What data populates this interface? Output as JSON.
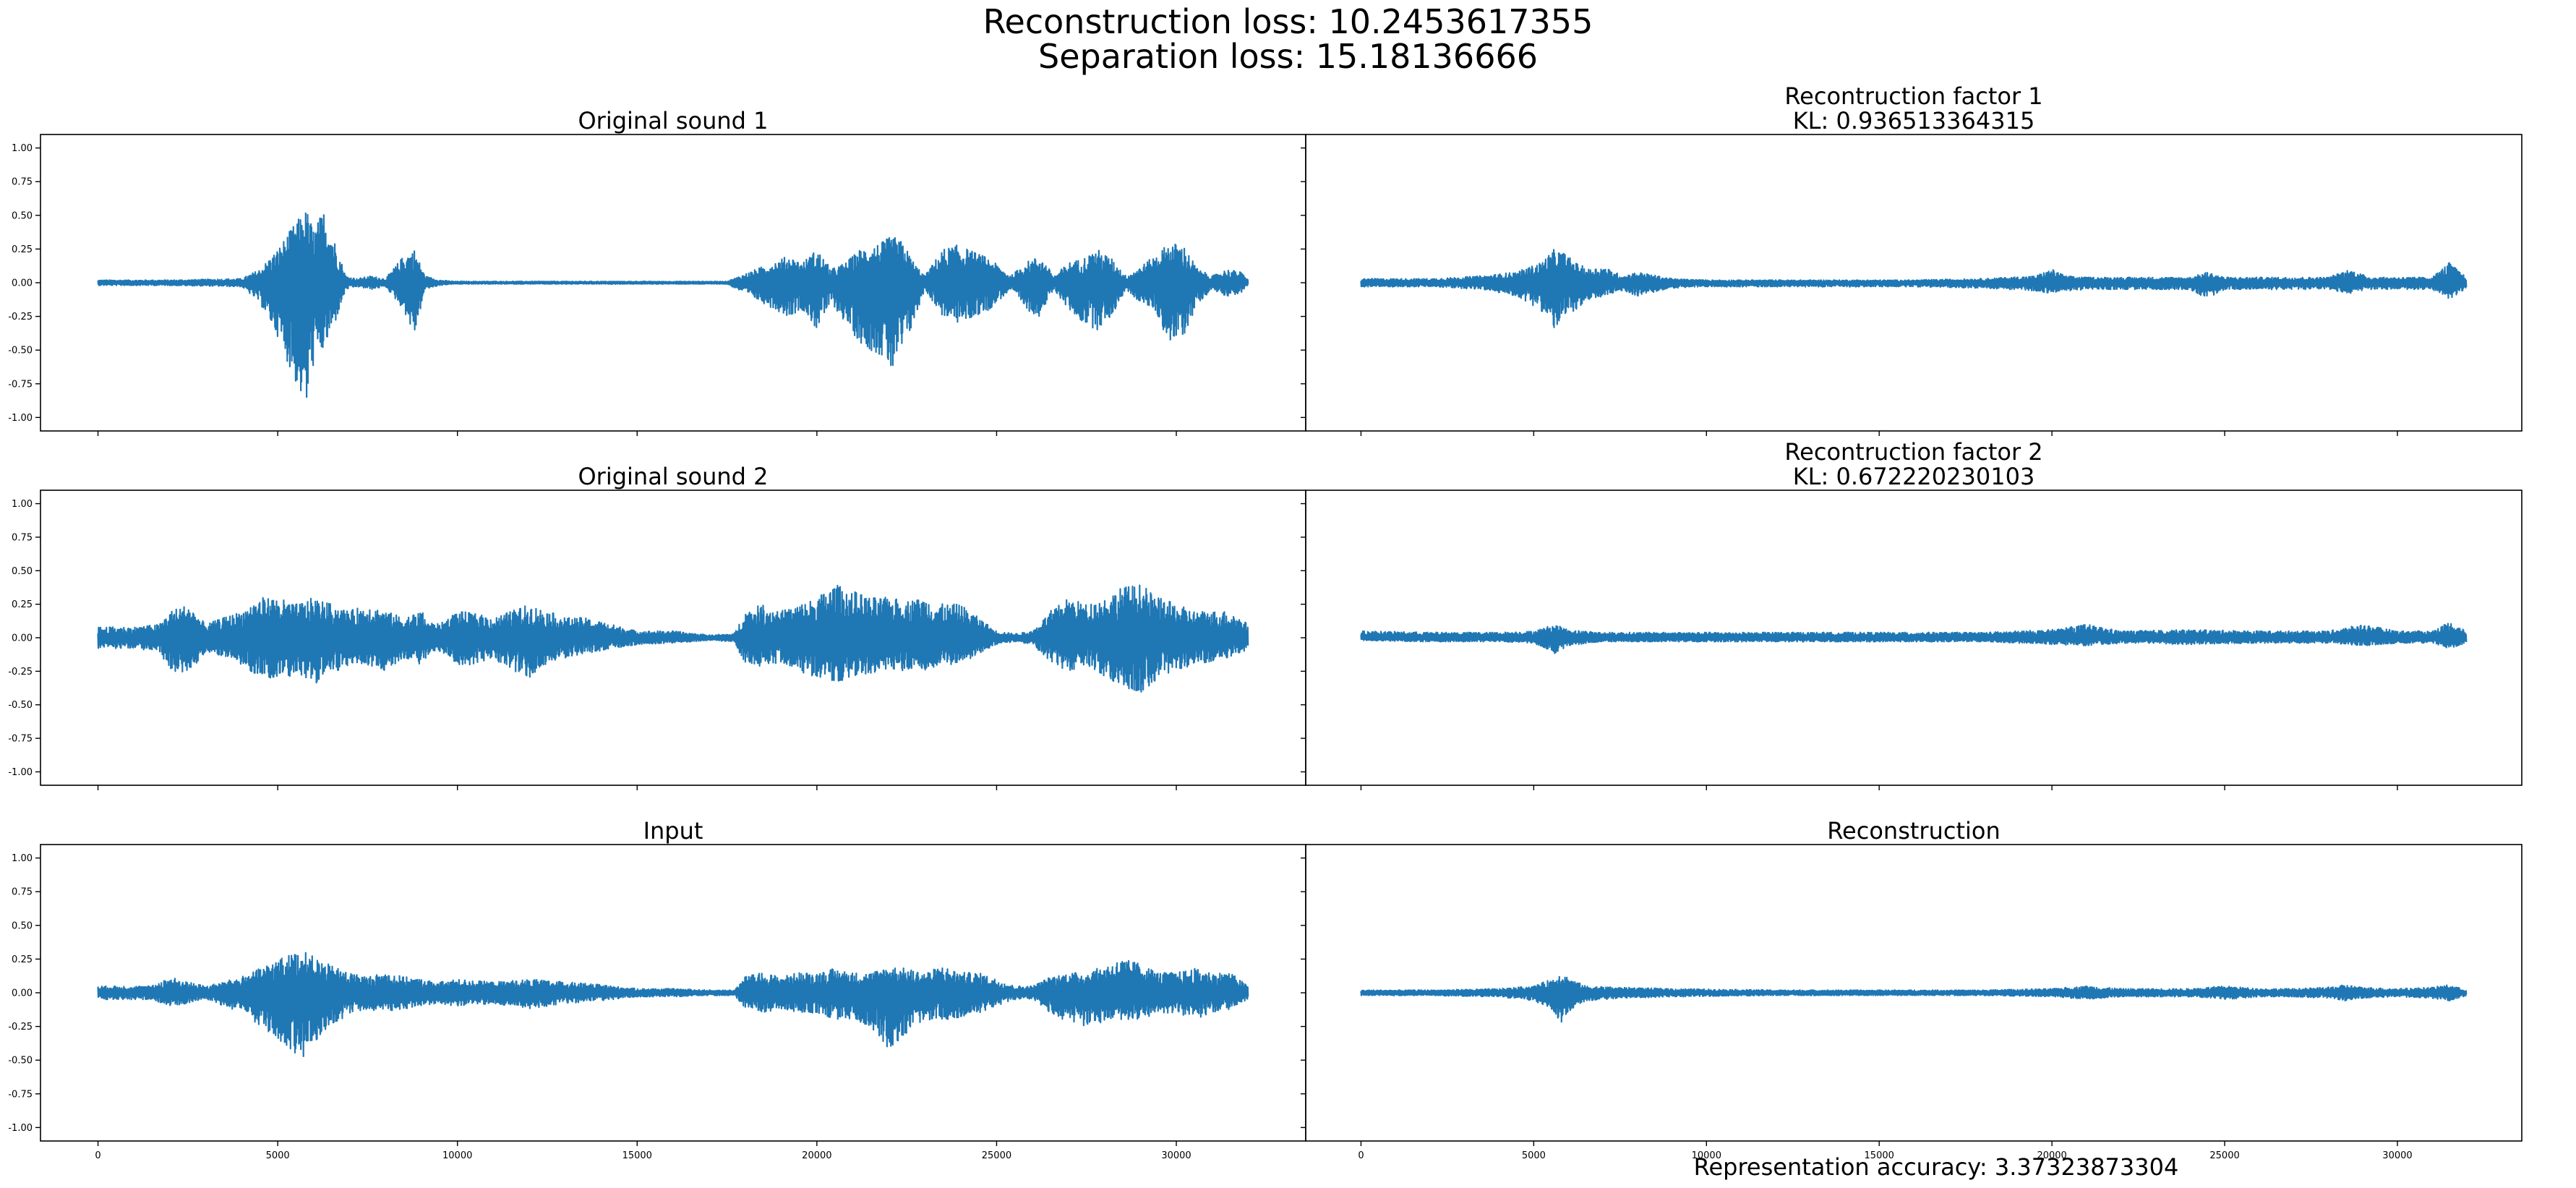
{
  "figure": {
    "suptitle_line1": "Reconstruction loss: 10.2453617355",
    "suptitle_line2": "Separation loss: 15.18136666",
    "footer": "Representation accuracy: 3.37323873304"
  },
  "colors": {
    "line": "#1f77b4",
    "axis": "#000000",
    "background": "#ffffff"
  },
  "chart_data": [
    {
      "type": "line",
      "title": "Original sound 1",
      "subtitle": "",
      "ylim": [
        -1.1,
        1.1
      ],
      "xlim": [
        -1600,
        33600
      ],
      "yticks": [
        "-1.00",
        "-0.75",
        "-0.50",
        "-0.25",
        "0.00",
        "0.25",
        "0.50",
        "0.75",
        "1.00"
      ],
      "xticks": [],
      "envelope": {
        "x": [
          0,
          2000,
          4000,
          4500,
          5000,
          5500,
          5800,
          6000,
          6300,
          6600,
          6900,
          7200,
          7600,
          8000,
          8500,
          8800,
          9100,
          9500,
          9900,
          10200,
          11000,
          13000,
          15000,
          17500,
          19200,
          19600,
          20000,
          20400,
          20800,
          21200,
          21800,
          22100,
          22400,
          22700,
          23000,
          23500,
          23900,
          24200,
          24800,
          25400,
          25800,
          26200,
          26600,
          27000,
          27400,
          27800,
          28200,
          28600,
          29000,
          29400,
          29800,
          30200,
          30600,
          31000,
          31400,
          31800,
          32000
        ],
        "upper": [
          0.02,
          0.02,
          0.03,
          0.1,
          0.25,
          0.45,
          0.55,
          0.4,
          0.55,
          0.3,
          0.05,
          0.03,
          0.05,
          0.03,
          0.2,
          0.25,
          0.05,
          0.02,
          0.01,
          0.01,
          0.01,
          0.01,
          0.01,
          0.01,
          0.2,
          0.15,
          0.25,
          0.1,
          0.15,
          0.25,
          0.3,
          0.35,
          0.3,
          0.15,
          0.05,
          0.25,
          0.28,
          0.25,
          0.18,
          0.05,
          0.15,
          0.2,
          0.05,
          0.15,
          0.18,
          0.25,
          0.18,
          0.05,
          0.12,
          0.2,
          0.3,
          0.28,
          0.1,
          0.05,
          0.1,
          0.08,
          0.02
        ],
        "lower": [
          -0.02,
          -0.02,
          -0.03,
          -0.15,
          -0.4,
          -0.75,
          -0.95,
          -0.6,
          -0.5,
          -0.3,
          -0.05,
          -0.03,
          -0.05,
          -0.03,
          -0.2,
          -0.4,
          -0.05,
          -0.02,
          -0.01,
          -0.01,
          -0.01,
          -0.01,
          -0.01,
          -0.01,
          -0.25,
          -0.2,
          -0.35,
          -0.15,
          -0.3,
          -0.45,
          -0.55,
          -0.68,
          -0.5,
          -0.3,
          -0.05,
          -0.25,
          -0.3,
          -0.28,
          -0.2,
          -0.05,
          -0.2,
          -0.25,
          -0.05,
          -0.2,
          -0.3,
          -0.35,
          -0.25,
          -0.05,
          -0.15,
          -0.2,
          -0.45,
          -0.4,
          -0.15,
          -0.05,
          -0.1,
          -0.08,
          -0.02
        ]
      }
    },
    {
      "type": "line",
      "title": "Recontruction factor 1",
      "subtitle": "KL: 0.936513364315",
      "ylim": [
        -1.1,
        1.1
      ],
      "xlim": [
        -1600,
        33600
      ],
      "yticks": [],
      "xticks": [],
      "envelope": {
        "x": [
          0,
          2000,
          3500,
          4500,
          5200,
          5600,
          5900,
          6200,
          6600,
          7000,
          7600,
          8000,
          9000,
          10000,
          12000,
          14000,
          16000,
          18000,
          19500,
          20000,
          20400,
          21000,
          22000,
          23000,
          24000,
          24500,
          25000,
          26000,
          27000,
          28000,
          28600,
          29200,
          30000,
          31000,
          31500,
          32000
        ],
        "upper": [
          0.03,
          0.03,
          0.05,
          0.08,
          0.15,
          0.25,
          0.22,
          0.15,
          0.1,
          0.12,
          0.05,
          0.08,
          0.03,
          0.02,
          0.02,
          0.02,
          0.02,
          0.03,
          0.05,
          0.1,
          0.05,
          0.04,
          0.04,
          0.04,
          0.04,
          0.08,
          0.04,
          0.04,
          0.04,
          0.04,
          0.1,
          0.04,
          0.04,
          0.04,
          0.15,
          0.04
        ],
        "lower": [
          -0.03,
          -0.03,
          -0.05,
          -0.1,
          -0.2,
          -0.35,
          -0.28,
          -0.2,
          -0.15,
          -0.1,
          -0.06,
          -0.1,
          -0.04,
          -0.03,
          -0.03,
          -0.03,
          -0.03,
          -0.04,
          -0.06,
          -0.08,
          -0.06,
          -0.05,
          -0.05,
          -0.05,
          -0.05,
          -0.12,
          -0.05,
          -0.05,
          -0.05,
          -0.05,
          -0.08,
          -0.05,
          -0.05,
          -0.05,
          -0.12,
          -0.05
        ]
      }
    },
    {
      "type": "line",
      "title": "Original sound 2",
      "subtitle": "",
      "ylim": [
        -1.1,
        1.1
      ],
      "xlim": [
        -1600,
        33600
      ],
      "yticks": [
        "-1.00",
        "-0.75",
        "-0.50",
        "-0.25",
        "0.00",
        "0.25",
        "0.50",
        "0.75",
        "1.00"
      ],
      "xticks": [],
      "envelope": {
        "x": [
          0,
          1000,
          1700,
          2000,
          2500,
          3000,
          3500,
          4000,
          4500,
          5000,
          5500,
          6000,
          6500,
          7000,
          7500,
          8000,
          8500,
          9000,
          9200,
          9500,
          10000,
          10500,
          11000,
          11500,
          12000,
          12500,
          13000,
          13500,
          14000,
          15000,
          16000,
          17000,
          17700,
          18000,
          18500,
          19000,
          19500,
          20000,
          20500,
          21000,
          21500,
          22000,
          22500,
          23000,
          23500,
          24000,
          24500,
          25000,
          25500,
          26000,
          26500,
          27000,
          27500,
          28000,
          28500,
          29000,
          29500,
          30000,
          30500,
          31000,
          31500,
          32000
        ],
        "upper": [
          0.08,
          0.08,
          0.1,
          0.2,
          0.25,
          0.1,
          0.15,
          0.2,
          0.3,
          0.3,
          0.25,
          0.3,
          0.25,
          0.2,
          0.25,
          0.2,
          0.15,
          0.2,
          0.12,
          0.1,
          0.2,
          0.18,
          0.15,
          0.2,
          0.25,
          0.2,
          0.15,
          0.15,
          0.12,
          0.05,
          0.05,
          0.02,
          0.03,
          0.2,
          0.25,
          0.2,
          0.25,
          0.3,
          0.4,
          0.35,
          0.3,
          0.3,
          0.28,
          0.3,
          0.25,
          0.25,
          0.15,
          0.05,
          0.03,
          0.05,
          0.2,
          0.3,
          0.25,
          0.3,
          0.38,
          0.4,
          0.3,
          0.25,
          0.2,
          0.2,
          0.2,
          0.1
        ],
        "lower": [
          -0.08,
          -0.08,
          -0.1,
          -0.25,
          -0.28,
          -0.1,
          -0.15,
          -0.2,
          -0.3,
          -0.3,
          -0.28,
          -0.35,
          -0.28,
          -0.2,
          -0.2,
          -0.25,
          -0.15,
          -0.2,
          -0.12,
          -0.1,
          -0.2,
          -0.2,
          -0.15,
          -0.25,
          -0.3,
          -0.2,
          -0.15,
          -0.12,
          -0.1,
          -0.05,
          -0.04,
          -0.02,
          -0.03,
          -0.2,
          -0.22,
          -0.18,
          -0.25,
          -0.3,
          -0.35,
          -0.3,
          -0.28,
          -0.25,
          -0.25,
          -0.25,
          -0.2,
          -0.2,
          -0.12,
          -0.05,
          -0.03,
          -0.05,
          -0.2,
          -0.25,
          -0.2,
          -0.3,
          -0.38,
          -0.42,
          -0.3,
          -0.25,
          -0.2,
          -0.18,
          -0.15,
          -0.1
        ]
      }
    },
    {
      "type": "line",
      "title": "Recontruction factor 2",
      "subtitle": "KL: 0.672220230103",
      "ylim": [
        -1.1,
        1.1
      ],
      "xlim": [
        -1600,
        33600
      ],
      "yticks": [],
      "xticks": [],
      "envelope": {
        "x": [
          0,
          2000,
          4000,
          5000,
          5600,
          6000,
          7000,
          9000,
          12000,
          15000,
          18000,
          20000,
          21000,
          22000,
          24000,
          26000,
          28000,
          29000,
          30000,
          31000,
          31500,
          32000
        ],
        "upper": [
          0.05,
          0.04,
          0.04,
          0.05,
          0.1,
          0.06,
          0.04,
          0.04,
          0.04,
          0.04,
          0.04,
          0.06,
          0.1,
          0.05,
          0.06,
          0.05,
          0.05,
          0.1,
          0.05,
          0.05,
          0.12,
          0.05
        ],
        "lower": [
          -0.02,
          -0.03,
          -0.03,
          -0.04,
          -0.12,
          -0.06,
          -0.03,
          -0.03,
          -0.03,
          -0.03,
          -0.03,
          -0.05,
          -0.06,
          -0.04,
          -0.05,
          -0.04,
          -0.04,
          -0.06,
          -0.04,
          -0.04,
          -0.08,
          -0.04
        ]
      }
    },
    {
      "type": "line",
      "title": "Input",
      "subtitle": "",
      "ylim": [
        -1.1,
        1.1
      ],
      "xlim": [
        -1600,
        33600
      ],
      "yticks": [
        "-1.00",
        "-0.75",
        "-0.50",
        "-0.25",
        "0.00",
        "0.25",
        "0.50",
        "0.75",
        "1.00"
      ],
      "xticks": [
        "0",
        "5000",
        "10000",
        "15000",
        "20000",
        "25000",
        "30000"
      ],
      "envelope": {
        "x": [
          0,
          1500,
          2000,
          2500,
          3000,
          3500,
          4000,
          4500,
          5000,
          5500,
          5800,
          6100,
          6500,
          7000,
          7500,
          8000,
          8500,
          9000,
          9500,
          10000,
          11000,
          12000,
          13000,
          14000,
          15000,
          16000,
          17000,
          17700,
          18000,
          18500,
          19000,
          19500,
          20000,
          20500,
          21000,
          21500,
          22000,
          22500,
          23000,
          23500,
          24000,
          24500,
          25000,
          25500,
          26000,
          26500,
          27000,
          27500,
          28000,
          28500,
          29000,
          29500,
          30000,
          30500,
          31000,
          31500,
          32000
        ],
        "upper": [
          0.05,
          0.05,
          0.12,
          0.08,
          0.05,
          0.08,
          0.12,
          0.18,
          0.25,
          0.3,
          0.3,
          0.25,
          0.2,
          0.15,
          0.12,
          0.15,
          0.12,
          0.1,
          0.08,
          0.1,
          0.08,
          0.1,
          0.08,
          0.06,
          0.03,
          0.03,
          0.02,
          0.02,
          0.12,
          0.15,
          0.12,
          0.15,
          0.15,
          0.18,
          0.15,
          0.15,
          0.2,
          0.18,
          0.15,
          0.2,
          0.15,
          0.15,
          0.1,
          0.05,
          0.05,
          0.12,
          0.15,
          0.15,
          0.2,
          0.25,
          0.22,
          0.15,
          0.15,
          0.18,
          0.15,
          0.15,
          0.05
        ],
        "lower": [
          -0.05,
          -0.05,
          -0.1,
          -0.08,
          -0.05,
          -0.1,
          -0.15,
          -0.25,
          -0.35,
          -0.45,
          -0.48,
          -0.35,
          -0.25,
          -0.15,
          -0.12,
          -0.15,
          -0.12,
          -0.1,
          -0.08,
          -0.1,
          -0.08,
          -0.12,
          -0.08,
          -0.06,
          -0.03,
          -0.03,
          -0.02,
          -0.02,
          -0.12,
          -0.15,
          -0.12,
          -0.15,
          -0.15,
          -0.2,
          -0.2,
          -0.25,
          -0.42,
          -0.3,
          -0.2,
          -0.2,
          -0.2,
          -0.15,
          -0.1,
          -0.05,
          -0.05,
          -0.15,
          -0.22,
          -0.25,
          -0.22,
          -0.2,
          -0.2,
          -0.15,
          -0.15,
          -0.2,
          -0.15,
          -0.12,
          -0.05
        ]
      }
    },
    {
      "type": "line",
      "title": "Reconstruction",
      "subtitle": "",
      "ylim": [
        -1.1,
        1.1
      ],
      "xlim": [
        -1600,
        33600
      ],
      "yticks": [],
      "xticks": [
        "0",
        "5000",
        "10000",
        "15000",
        "20000",
        "25000",
        "30000"
      ],
      "envelope": {
        "x": [
          0,
          2000,
          4000,
          5000,
          5500,
          5800,
          6100,
          6500,
          7500,
          9000,
          12000,
          15000,
          18000,
          20000,
          21000,
          22000,
          24000,
          25000,
          26000,
          27000,
          28000,
          28500,
          29000,
          30000,
          31000,
          31500,
          32000
        ],
        "upper": [
          0.02,
          0.02,
          0.03,
          0.05,
          0.1,
          0.15,
          0.1,
          0.05,
          0.04,
          0.03,
          0.02,
          0.02,
          0.02,
          0.03,
          0.05,
          0.03,
          0.03,
          0.05,
          0.03,
          0.03,
          0.04,
          0.06,
          0.04,
          0.03,
          0.04,
          0.06,
          0.02
        ],
        "lower": [
          -0.02,
          -0.02,
          -0.03,
          -0.06,
          -0.12,
          -0.22,
          -0.12,
          -0.06,
          -0.04,
          -0.03,
          -0.02,
          -0.02,
          -0.02,
          -0.03,
          -0.05,
          -0.03,
          -0.03,
          -0.05,
          -0.03,
          -0.03,
          -0.04,
          -0.06,
          -0.04,
          -0.03,
          -0.04,
          -0.06,
          -0.02
        ]
      }
    }
  ]
}
